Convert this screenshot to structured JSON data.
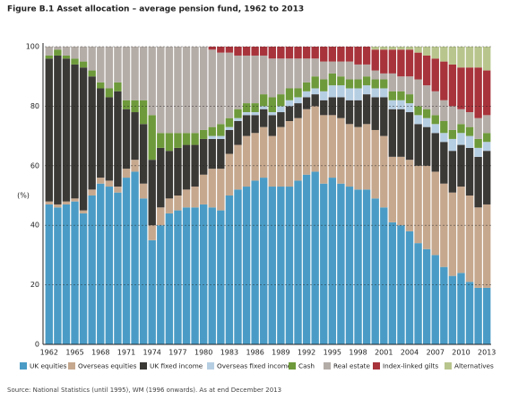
{
  "chart_data": {
    "type": "stacked-bar",
    "title": "Figure B.1 Asset allocation – average pension fund, 1962 to 2013",
    "y_label": "(%)",
    "source": "Source: National Statistics (until 1995), WM (1996 onwards). As at end December 2013",
    "categories": [
      "1962",
      null,
      null,
      "1965",
      null,
      null,
      "1968",
      null,
      null,
      "1971",
      null,
      null,
      "1974",
      null,
      null,
      "1977",
      null,
      null,
      "1980",
      null,
      null,
      "1983",
      null,
      null,
      "1986",
      null,
      null,
      "1989",
      null,
      null,
      "1992",
      null,
      null,
      "1995",
      null,
      null,
      "1998",
      null,
      null,
      "2001",
      null,
      null,
      "2004",
      null,
      null,
      "2007",
      null,
      null,
      "2010",
      null,
      null,
      "2013"
    ],
    "ylim": [
      0,
      100
    ],
    "yticks": [
      0,
      20,
      40,
      60,
      80,
      100
    ],
    "grid": true,
    "series": [
      {
        "name": "UK equities",
        "color": "#4a9cc6",
        "values": [
          47,
          46,
          47,
          48,
          44,
          50,
          54,
          53,
          51,
          56,
          58,
          49,
          35,
          40,
          44,
          45,
          46,
          46,
          47,
          46,
          45,
          50,
          52,
          53,
          55,
          56,
          53,
          53,
          53,
          55,
          57,
          58,
          54,
          56,
          54,
          53,
          52,
          52,
          49,
          46,
          41,
          40,
          38,
          34,
          32,
          30,
          26,
          23,
          24,
          21,
          19,
          19
        ]
      },
      {
        "name": "Overseas equities",
        "color": "#c6a88e",
        "values": [
          1,
          1,
          1,
          1,
          1,
          2,
          2,
          2,
          2,
          3,
          4,
          5,
          5,
          6,
          5,
          5,
          6,
          7,
          10,
          13,
          14,
          14,
          15,
          17,
          16,
          17,
          17,
          20,
          22,
          21,
          22,
          22,
          23,
          21,
          22,
          21,
          21,
          22,
          23,
          24,
          22,
          23,
          24,
          26,
          28,
          28,
          28,
          28,
          29,
          29,
          27,
          28
        ]
      },
      {
        "name": "UK fixed income",
        "color": "#3b3936",
        "values": [
          48,
          50,
          48,
          45,
          48,
          38,
          30,
          28,
          32,
          20,
          16,
          20,
          22,
          20,
          16,
          16,
          15,
          14,
          12,
          10,
          10,
          8,
          8,
          7,
          6,
          6,
          7,
          5,
          5,
          5,
          4,
          4,
          5,
          6,
          7,
          8,
          9,
          10,
          11,
          13,
          16,
          16,
          16,
          14,
          13,
          13,
          14,
          14,
          14,
          16,
          17,
          18
        ]
      },
      {
        "name": "Overseas fixed income",
        "color": "#b6cee2",
        "values": [
          0,
          0,
          0,
          0,
          0,
          0,
          0,
          0,
          0,
          0,
          0,
          0,
          0,
          0,
          0,
          0,
          0,
          0,
          0,
          1,
          1,
          1,
          1,
          1,
          1,
          1,
          1,
          2,
          2,
          2,
          2,
          2,
          3,
          4,
          4,
          4,
          4,
          3,
          3,
          3,
          3,
          3,
          3,
          3,
          3,
          3,
          3,
          4,
          4,
          4,
          3,
          3
        ]
      },
      {
        "name": "Cash",
        "color": "#6e9a3b",
        "values": [
          1,
          2,
          1,
          2,
          2,
          2,
          2,
          3,
          3,
          3,
          4,
          8,
          15,
          5,
          6,
          5,
          4,
          4,
          3,
          3,
          4,
          3,
          3,
          3,
          3,
          4,
          5,
          4,
          4,
          3,
          3,
          4,
          4,
          4,
          3,
          3,
          3,
          3,
          3,
          3,
          3,
          3,
          3,
          3,
          3,
          3,
          4,
          3,
          3,
          3,
          3,
          3
        ]
      },
      {
        "name": "Real estate",
        "color": "#b4aca7",
        "values": [
          3,
          1,
          3,
          4,
          5,
          8,
          12,
          14,
          12,
          18,
          18,
          18,
          23,
          29,
          29,
          29,
          29,
          29,
          28,
          26,
          24,
          22,
          18,
          16,
          16,
          13,
          13,
          12,
          10,
          10,
          8,
          6,
          6,
          4,
          5,
          6,
          5,
          4,
          3,
          2,
          6,
          5,
          6,
          9,
          8,
          8,
          7,
          8,
          5,
          5,
          7,
          6
        ]
      },
      {
        "name": "Index-linked gilts",
        "color": "#a8333b",
        "values": [
          0,
          0,
          0,
          0,
          0,
          0,
          0,
          0,
          0,
          0,
          0,
          0,
          0,
          0,
          0,
          0,
          0,
          0,
          0,
          1,
          2,
          2,
          3,
          3,
          3,
          3,
          4,
          4,
          4,
          4,
          4,
          4,
          5,
          5,
          5,
          5,
          6,
          6,
          7,
          8,
          8,
          9,
          9,
          9,
          10,
          11,
          13,
          14,
          14,
          15,
          17,
          15
        ]
      },
      {
        "name": "Alternatives",
        "color": "#b8c58d",
        "values": [
          0,
          0,
          0,
          0,
          0,
          0,
          0,
          0,
          0,
          0,
          0,
          0,
          0,
          0,
          0,
          0,
          0,
          0,
          0,
          0,
          0,
          0,
          0,
          0,
          0,
          0,
          0,
          0,
          0,
          0,
          0,
          0,
          0,
          0,
          0,
          0,
          0,
          0,
          1,
          1,
          1,
          1,
          1,
          2,
          3,
          4,
          5,
          6,
          7,
          7,
          7,
          8
        ]
      }
    ]
  }
}
